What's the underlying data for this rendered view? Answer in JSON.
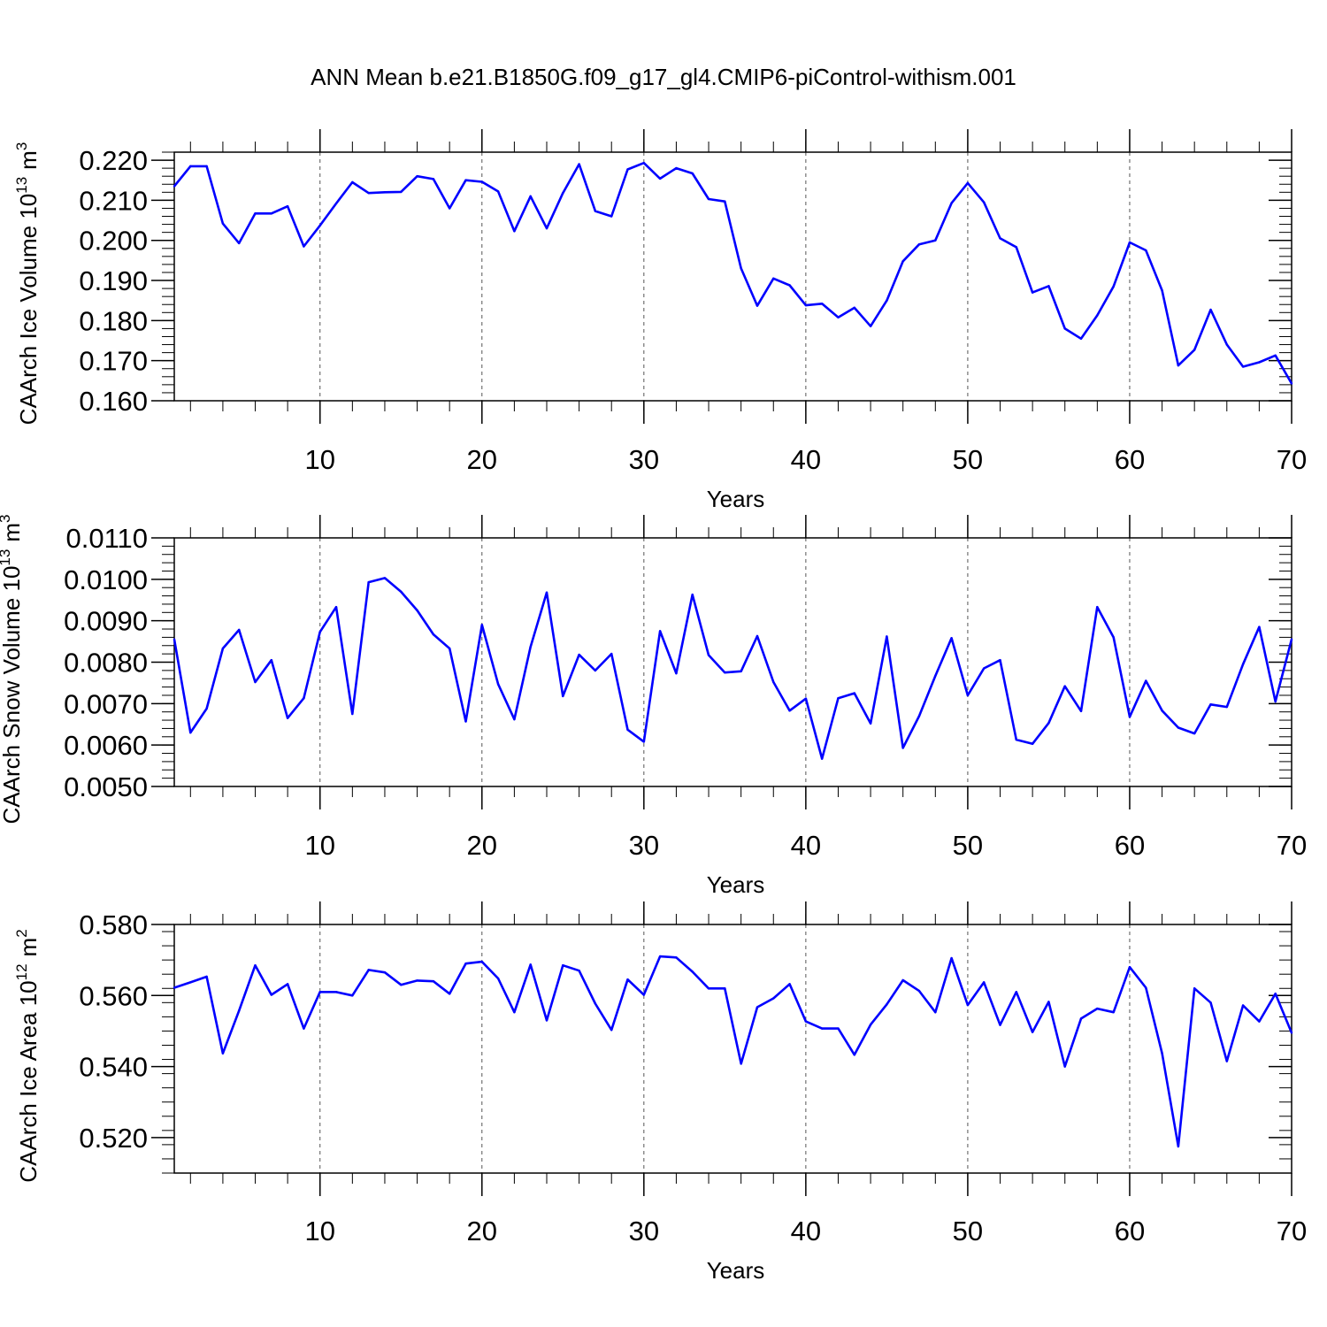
{
  "title": "ANN Mean b.e21.B1850G.f09_g17_gl4.CMIP6-piControl-withism.001",
  "colors": {
    "line": "#0000ff",
    "axis": "#000000",
    "grid": "#555555"
  },
  "chart_data": [
    {
      "type": "line",
      "name": "ice-volume",
      "ylabel_main": "CAArch Ice Volume 10",
      "ylabel_exp": "13",
      "ylabel_unit": "m",
      "ylabel_unit_exp": "3",
      "xlabel": "Years",
      "xlim": [
        1,
        70
      ],
      "ylim": [
        0.16,
        0.222
      ],
      "yticks": [
        0.16,
        0.17,
        0.18,
        0.19,
        0.2,
        0.21,
        0.22
      ],
      "yticklabels": [
        "0.160",
        "0.170",
        "0.180",
        "0.190",
        "0.200",
        "0.210",
        "0.220"
      ],
      "yminor": 0.002,
      "xticks": [
        10,
        20,
        30,
        40,
        50,
        60,
        70
      ],
      "xticklabels": [
        "10",
        "20",
        "30",
        "40",
        "50",
        "60",
        "70"
      ],
      "x": [
        1,
        2,
        3,
        4,
        5,
        6,
        7,
        8,
        9,
        10,
        11,
        12,
        13,
        14,
        15,
        16,
        17,
        18,
        19,
        20,
        21,
        22,
        23,
        24,
        25,
        26,
        27,
        28,
        29,
        30,
        31,
        32,
        33,
        34,
        35,
        36,
        37,
        38,
        39,
        40,
        41,
        42,
        43,
        44,
        45,
        46,
        47,
        48,
        49,
        50,
        51,
        52,
        53,
        54,
        55,
        56,
        57,
        58,
        59,
        60,
        61,
        62,
        63,
        64,
        65,
        66,
        67,
        68,
        69,
        70
      ],
      "values": [
        0.2135,
        0.2185,
        0.2185,
        0.2042,
        0.1993,
        0.2067,
        0.2067,
        0.2085,
        0.1985,
        0.2037,
        0.2092,
        0.2145,
        0.2118,
        0.212,
        0.2121,
        0.216,
        0.2153,
        0.208,
        0.215,
        0.2146,
        0.2122,
        0.2023,
        0.211,
        0.203,
        0.2118,
        0.219,
        0.2073,
        0.206,
        0.2177,
        0.2193,
        0.2154,
        0.218,
        0.2167,
        0.2103,
        0.2097,
        0.193,
        0.1837,
        0.1905,
        0.1888,
        0.1838,
        0.1842,
        0.1808,
        0.1832,
        0.1786,
        0.185,
        0.1948,
        0.199,
        0.2,
        0.2093,
        0.2143,
        0.2095,
        0.2005,
        0.1983,
        0.187,
        0.1886,
        0.178,
        0.1755,
        0.1813,
        0.1885,
        0.1995,
        0.1975,
        0.1875,
        0.1688,
        0.1727,
        0.1827,
        0.174,
        0.1685,
        0.1696,
        0.1713,
        0.1643
      ]
    },
    {
      "type": "line",
      "name": "snow-volume",
      "ylabel_main": "CAArch Snow Volume 10",
      "ylabel_exp": "13",
      "ylabel_unit": "m",
      "ylabel_unit_exp": "3",
      "xlabel": "Years",
      "xlim": [
        1,
        70
      ],
      "ylim": [
        0.005,
        0.011
      ],
      "yticks": [
        0.005,
        0.006,
        0.007,
        0.008,
        0.009,
        0.01,
        0.011
      ],
      "yticklabels": [
        "0.0050",
        "0.0060",
        "0.0070",
        "0.0080",
        "0.0090",
        "0.0100",
        "0.0110"
      ],
      "yminor": 0.0002,
      "xticks": [
        10,
        20,
        30,
        40,
        50,
        60,
        70
      ],
      "xticklabels": [
        "10",
        "20",
        "30",
        "40",
        "50",
        "60",
        "70"
      ],
      "x": [
        1,
        2,
        3,
        4,
        5,
        6,
        7,
        8,
        9,
        10,
        11,
        12,
        13,
        14,
        15,
        16,
        17,
        18,
        19,
        20,
        21,
        22,
        23,
        24,
        25,
        26,
        27,
        28,
        29,
        30,
        31,
        32,
        33,
        34,
        35,
        36,
        37,
        38,
        39,
        40,
        41,
        42,
        43,
        44,
        45,
        46,
        47,
        48,
        49,
        50,
        51,
        52,
        53,
        54,
        55,
        56,
        57,
        58,
        59,
        60,
        61,
        62,
        63,
        64,
        65,
        66,
        67,
        68,
        69,
        70
      ],
      "values": [
        0.00855,
        0.0063,
        0.00688,
        0.00833,
        0.00878,
        0.00752,
        0.00805,
        0.00665,
        0.00713,
        0.00873,
        0.00933,
        0.00675,
        0.00993,
        0.01003,
        0.0097,
        0.00925,
        0.00867,
        0.00833,
        0.00657,
        0.0089,
        0.00747,
        0.00662,
        0.00837,
        0.00968,
        0.00718,
        0.00818,
        0.0078,
        0.0082,
        0.00637,
        0.00608,
        0.00875,
        0.00773,
        0.00963,
        0.00817,
        0.00775,
        0.00778,
        0.00863,
        0.00752,
        0.00683,
        0.00712,
        0.00567,
        0.00713,
        0.00725,
        0.00652,
        0.00862,
        0.00593,
        0.0067,
        0.00767,
        0.00858,
        0.0072,
        0.00785,
        0.00805,
        0.00613,
        0.00603,
        0.00653,
        0.00742,
        0.00682,
        0.00933,
        0.0086,
        0.00668,
        0.00755,
        0.00683,
        0.00642,
        0.00628,
        0.00698,
        0.00692,
        0.00795,
        0.00885,
        0.00705,
        0.00855
      ]
    },
    {
      "type": "line",
      "name": "ice-area",
      "ylabel_main": "CAArch Ice Area 10",
      "ylabel_exp": "12",
      "ylabel_unit": "m",
      "ylabel_unit_exp": "2",
      "xlabel": "Years",
      "xlim": [
        1,
        70
      ],
      "ylim": [
        0.51,
        0.58
      ],
      "yticks": [
        0.52,
        0.54,
        0.56,
        0.58
      ],
      "yticklabels": [
        "0.520",
        "0.540",
        "0.560",
        "0.580"
      ],
      "yminor": 0.004,
      "xticks": [
        10,
        20,
        30,
        40,
        50,
        60,
        70
      ],
      "xticklabels": [
        "10",
        "20",
        "30",
        "40",
        "50",
        "60",
        "70"
      ],
      "x": [
        1,
        2,
        3,
        4,
        5,
        6,
        7,
        8,
        9,
        10,
        11,
        12,
        13,
        14,
        15,
        16,
        17,
        18,
        19,
        20,
        21,
        22,
        23,
        24,
        25,
        26,
        27,
        28,
        29,
        30,
        31,
        32,
        33,
        34,
        35,
        36,
        37,
        38,
        39,
        40,
        41,
        42,
        43,
        44,
        45,
        46,
        47,
        48,
        49,
        50,
        51,
        52,
        53,
        54,
        55,
        56,
        57,
        58,
        59,
        60,
        61,
        62,
        63,
        64,
        65,
        66,
        67,
        68,
        69,
        70
      ],
      "values": [
        0.5622,
        0.5637,
        0.5653,
        0.5437,
        0.5557,
        0.5685,
        0.5602,
        0.5632,
        0.5507,
        0.561,
        0.561,
        0.56,
        0.5672,
        0.5665,
        0.563,
        0.5642,
        0.564,
        0.5605,
        0.569,
        0.5695,
        0.5648,
        0.5553,
        0.5687,
        0.553,
        0.5685,
        0.567,
        0.5577,
        0.5503,
        0.5645,
        0.5602,
        0.571,
        0.5707,
        0.5667,
        0.562,
        0.562,
        0.5408,
        0.5567,
        0.5592,
        0.5632,
        0.5527,
        0.5507,
        0.5507,
        0.5433,
        0.5518,
        0.5575,
        0.5643,
        0.5613,
        0.5553,
        0.5705,
        0.5573,
        0.5637,
        0.5517,
        0.561,
        0.5497,
        0.5582,
        0.54,
        0.5535,
        0.5563,
        0.5553,
        0.568,
        0.5622,
        0.5437,
        0.5175,
        0.562,
        0.558,
        0.5415,
        0.5572,
        0.5527,
        0.5605,
        0.5495
      ]
    }
  ]
}
